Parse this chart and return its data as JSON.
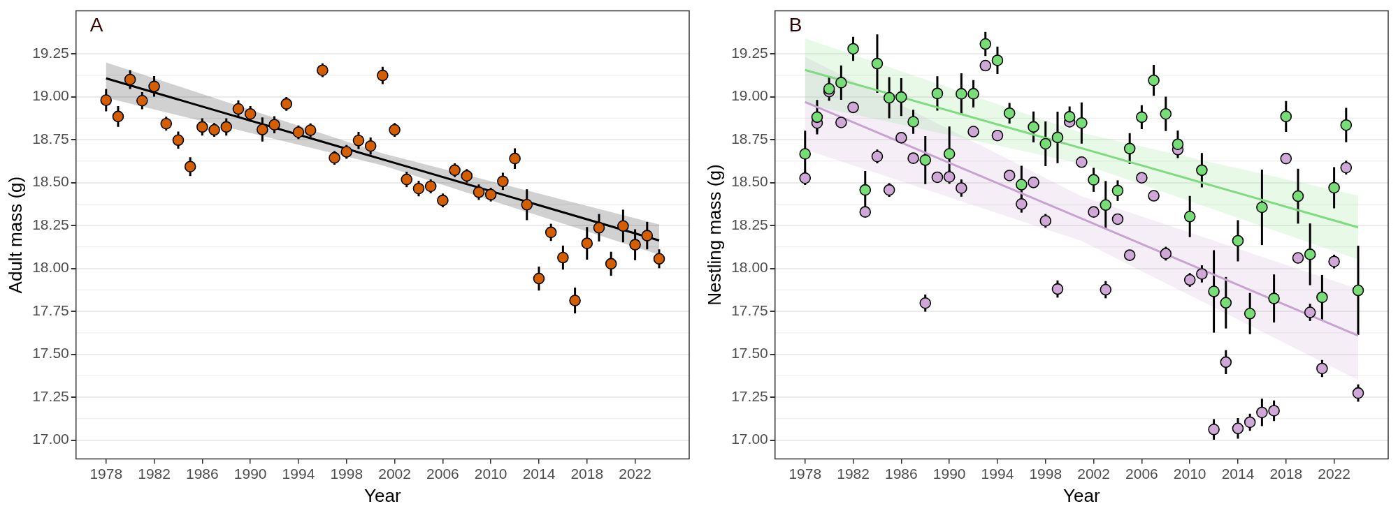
{
  "chart_data": [
    {
      "type": "scatter",
      "ylabel": "Adult mass (g)",
      "xlabel": "Year",
      "annotations": [
        "A"
      ],
      "grid": "y",
      "xlim": [
        1975.5,
        2026.5
      ],
      "xticks": [
        1978,
        1982,
        1986,
        1990,
        1994,
        1998,
        2002,
        2006,
        2010,
        2014,
        2018,
        2022
      ],
      "ylim": [
        16.89,
        19.5
      ],
      "yticks": [
        {
          "value": 17,
          "label": "17.00"
        },
        {
          "value": 17.25,
          "label": "17.25"
        },
        {
          "value": 17.5,
          "label": "17.50"
        },
        {
          "value": 17.75,
          "label": "17.75"
        },
        {
          "value": 18,
          "label": "18.00"
        },
        {
          "value": 18.25,
          "label": "18.25"
        },
        {
          "value": 18.5,
          "label": "18.50"
        },
        {
          "value": 18.75,
          "label": "18.75"
        },
        {
          "value": 19,
          "label": "19.00"
        },
        {
          "value": 19.25,
          "label": "19.25"
        }
      ],
      "x": [
        1978,
        1979,
        1980,
        1981,
        1982,
        1983,
        1984,
        1985,
        1986,
        1987,
        1988,
        1989,
        1990,
        1991,
        1992,
        1993,
        1994,
        1995,
        1996,
        1997,
        1998,
        1999,
        2000,
        2001,
        2002,
        2003,
        2004,
        2005,
        2006,
        2007,
        2008,
        2009,
        2010,
        2011,
        2012,
        2013,
        2014,
        2015,
        2016,
        2017,
        2018,
        2019,
        2020,
        2021,
        2022,
        2023,
        2024
      ],
      "series": [
        {
          "marker": "circle",
          "color": "#d55e00",
          "values": [
            18.98,
            18.885,
            19.1,
            18.977,
            19.06,
            18.843,
            18.747,
            18.593,
            18.824,
            18.807,
            18.824,
            18.929,
            18.9,
            18.809,
            18.837,
            18.958,
            18.793,
            18.805,
            19.154,
            18.644,
            18.679,
            18.745,
            18.713,
            19.124,
            18.807,
            18.518,
            18.465,
            18.478,
            18.396,
            18.572,
            18.539,
            18.444,
            18.43,
            18.507,
            18.64,
            18.371,
            17.941,
            18.21,
            18.063,
            17.813,
            18.146,
            18.237,
            18.027,
            18.247,
            18.138,
            18.191,
            18.056
          ],
          "errors": [
            0.065,
            0.06,
            0.055,
            0.05,
            0.06,
            0.04,
            0.05,
            0.055,
            0.05,
            0.04,
            0.05,
            0.05,
            0.045,
            0.07,
            0.05,
            0.04,
            0.04,
            0.04,
            0.04,
            0.04,
            0.04,
            0.05,
            0.05,
            0.05,
            0.04,
            0.045,
            0.045,
            0.04,
            0.04,
            0.04,
            0.04,
            0.045,
            0.04,
            0.05,
            0.06,
            0.09,
            0.07,
            0.05,
            0.07,
            0.075,
            0.095,
            0.08,
            0.07,
            0.095,
            0.09,
            0.08,
            0.055
          ]
        },
        {
          "type": "line",
          "color": "#000000",
          "x": [
            1978,
            2001,
            2024
          ],
          "values": [
            19.107,
            18.635,
            18.163
          ],
          "lower": [
            18.994,
            18.6,
            18.08
          ],
          "upper": [
            19.2,
            18.67,
            18.256
          ]
        }
      ]
    },
    {
      "type": "scatter",
      "ylabel": "Nestling mass (g)",
      "xlabel": "Year",
      "annotations": [
        "B"
      ],
      "grid": "y",
      "xlim": [
        1975.5,
        2026.5
      ],
      "xticks": [
        1978,
        1982,
        1986,
        1990,
        1994,
        1998,
        2002,
        2006,
        2010,
        2014,
        2018,
        2022
      ],
      "ylim": [
        16.89,
        19.5
      ],
      "yticks": [
        {
          "value": 17,
          "label": "17.00"
        },
        {
          "value": 17.25,
          "label": "17.25"
        },
        {
          "value": 17.5,
          "label": "17.50"
        },
        {
          "value": 17.75,
          "label": "17.75"
        },
        {
          "value": 18,
          "label": "18.00"
        },
        {
          "value": 18.25,
          "label": "18.25"
        },
        {
          "value": 18.5,
          "label": "18.50"
        },
        {
          "value": 18.75,
          "label": "18.75"
        },
        {
          "value": 19,
          "label": "19.00"
        },
        {
          "value": 19.25,
          "label": "19.25"
        }
      ],
      "x": [
        1978,
        1979,
        1980,
        1981,
        1982,
        1983,
        1984,
        1985,
        1986,
        1987,
        1988,
        1989,
        1990,
        1991,
        1992,
        1993,
        1994,
        1995,
        1996,
        1997,
        1998,
        1999,
        2000,
        2001,
        2002,
        2003,
        2004,
        2005,
        2006,
        2007,
        2008,
        2009,
        2010,
        2011,
        2012,
        2013,
        2014,
        2015,
        2016,
        2017,
        2018,
        2019,
        2020,
        2021,
        2022,
        2023,
        2024
      ],
      "series": [
        {
          "type": "line",
          "color": "#c8a2d0",
          "x": [
            1978,
            2001,
            2024
          ],
          "values": [
            18.969,
            18.29,
            17.608
          ],
          "lower": [
            18.692,
            18.16,
            17.35
          ],
          "upper": [
            19.233,
            18.42,
            17.88
          ]
        },
        {
          "type": "line",
          "color": "#7ddc7d",
          "x": [
            1978,
            2001,
            2024
          ],
          "values": [
            19.156,
            18.7,
            18.239
          ],
          "lower": [
            18.958,
            18.61,
            18.052
          ],
          "upper": [
            19.34,
            18.79,
            18.424
          ]
        },
        {
          "marker": "circle",
          "color": "#cfa8d8",
          "values": [
            18.526,
            18.847,
            19.03,
            18.85,
            18.938,
            18.329,
            18.652,
            18.457,
            18.761,
            18.642,
            17.798,
            18.531,
            18.533,
            18.468,
            18.797,
            19.181,
            18.774,
            18.541,
            18.375,
            18.501,
            18.277,
            17.88,
            18.854,
            18.619,
            18.329,
            17.876,
            18.287,
            18.077,
            18.528,
            18.423,
            18.086,
            18.692,
            17.933,
            17.968,
            17.062,
            17.454,
            17.068,
            17.104,
            17.161,
            17.171,
            18.64,
            18.061,
            17.744,
            17.417,
            18.04,
            18.587,
            17.274
          ],
          "errors": [
            0.04,
            0.05,
            0.03,
            0.02,
            0.03,
            0.03,
            0.04,
            0.04,
            0.03,
            0.02,
            0.05,
            0.03,
            0.04,
            0.05,
            0.03,
            0.02,
            0.02,
            0.03,
            0.05,
            0.02,
            0.04,
            0.05,
            0.03,
            0.03,
            0.03,
            0.05,
            0.03,
            0.03,
            0.02,
            0.02,
            0.04,
            0.03,
            0.04,
            0.05,
            0.06,
            0.07,
            0.06,
            0.05,
            0.08,
            0.06,
            0.03,
            0.03,
            0.05,
            0.05,
            0.04,
            0.04,
            0.05
          ]
        },
        {
          "marker": "circle",
          "color": "#77dd77",
          "values": [
            18.667,
            18.881,
            19.046,
            19.082,
            19.279,
            18.457,
            19.193,
            18.994,
            18.998,
            18.854,
            18.631,
            19.019,
            18.667,
            19.017,
            19.017,
            19.307,
            19.212,
            18.904,
            18.488,
            18.824,
            18.726,
            18.763,
            18.883,
            18.847,
            18.516,
            18.369,
            18.453,
            18.698,
            18.881,
            19.095,
            18.9,
            18.723,
            18.302,
            18.572,
            17.866,
            17.8,
            18.161,
            17.737,
            18.356,
            17.825,
            18.885,
            18.421,
            18.082,
            17.832,
            18.47,
            18.835,
            17.872
          ],
          "errors": [
            0.135,
            0.1,
            0.07,
            0.1,
            0.07,
            0.11,
            0.17,
            0.12,
            0.11,
            0.07,
            0.14,
            0.1,
            0.16,
            0.12,
            0.08,
            0.07,
            0.08,
            0.06,
            0.11,
            0.09,
            0.13,
            0.15,
            0.06,
            0.12,
            0.07,
            0.14,
            0.06,
            0.09,
            0.07,
            0.09,
            0.1,
            0.08,
            0.12,
            0.1,
            0.24,
            0.15,
            0.12,
            0.12,
            0.22,
            0.14,
            0.09,
            0.16,
            0.18,
            0.13,
            0.12,
            0.1,
            0.26
          ]
        }
      ]
    }
  ]
}
